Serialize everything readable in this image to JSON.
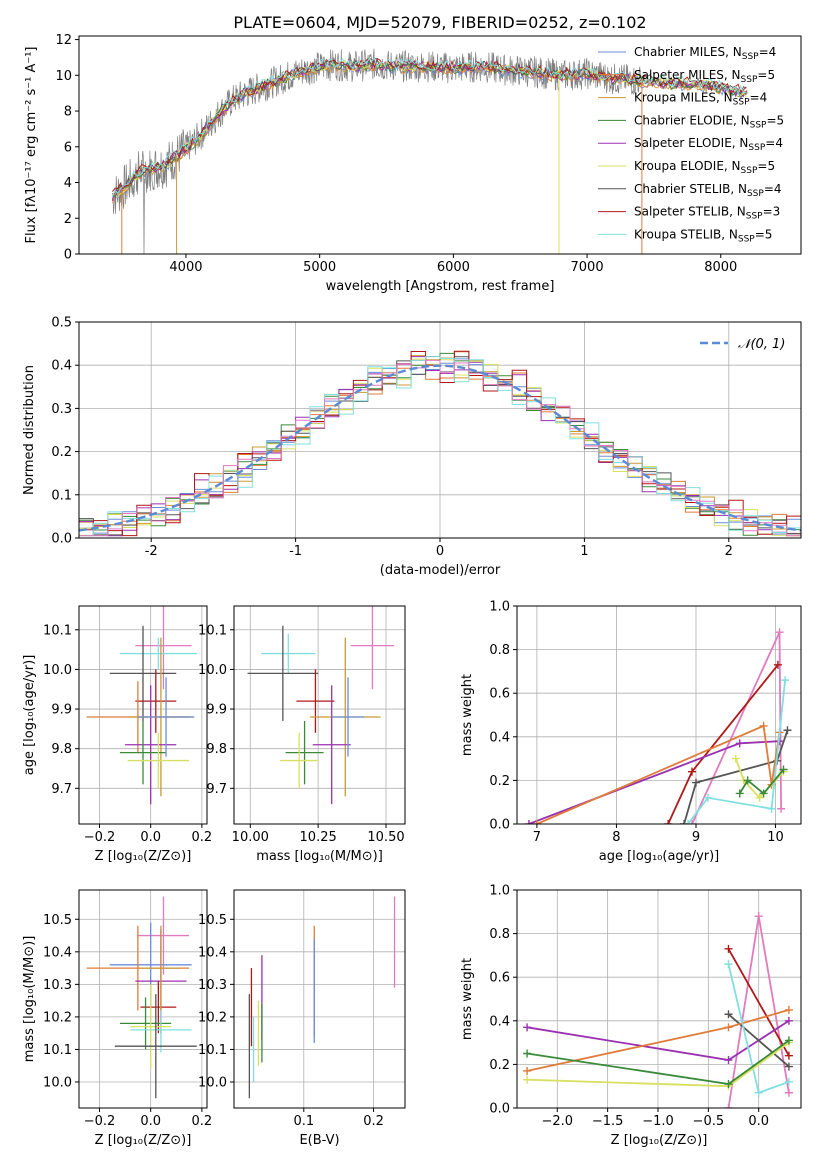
{
  "figure": {
    "title": "PLATE=0604, MJD=52079, FIBERID=0252, z=0.102"
  },
  "series_colors": {
    "Chabrier MILES": "#6b8dd6",
    "Salpeter MILES": "#e07b39",
    "Kroupa MILES": "#cc9933",
    "Chabrier ELODIE": "#3a8a3a",
    "Salpeter ELODIE": "#9a30b0",
    "Kroupa ELODIE": "#d8e060",
    "Chabrier STELIB": "#555555",
    "Salpeter STELIB": "#b01818",
    "Kroupa STELIB": "#80dfe0",
    "extra_pink": "#e07bc0"
  },
  "chart_data": [
    {
      "id": "spectrum",
      "type": "line",
      "title": "PLATE=0604, MJD=52079, FIBERID=0252, z=0.102",
      "xlabel": "wavelength [Angstrom, rest frame]",
      "ylabel": "Flux [fλ10⁻¹⁷ erg cm⁻² s⁻¹ A⁻¹]",
      "xlim": [
        3200,
        8600
      ],
      "ylim": [
        0,
        12.2
      ],
      "xticks": [
        4000,
        5000,
        6000,
        7000,
        8000
      ],
      "yticks": [
        0,
        2,
        4,
        6,
        8,
        10,
        12
      ],
      "grid": false,
      "legend_position": "right",
      "legend": [
        {
          "main": "Chabrier MILES, N",
          "sub": "SSP",
          "tail": "=4",
          "color": "#6b8dd6"
        },
        {
          "main": "Salpeter MILES, N",
          "sub": "SSP",
          "tail": "=5",
          "color": "#e07b39"
        },
        {
          "main": "Kroupa MILES, N",
          "sub": "SSP",
          "tail": "=4",
          "color": "#cc9933"
        },
        {
          "main": "Chabrier ELODIE, N",
          "sub": "SSP",
          "tail": "=5",
          "color": "#3a8a3a"
        },
        {
          "main": "Salpeter ELODIE, N",
          "sub": "SSP",
          "tail": "=4",
          "color": "#9a30b0"
        },
        {
          "main": "Kroupa ELODIE, N",
          "sub": "SSP",
          "tail": "=5",
          "color": "#d8e060"
        },
        {
          "main": "Chabrier STELIB, N",
          "sub": "SSP",
          "tail": "=4",
          "color": "#555555"
        },
        {
          "main": "Salpeter STELIB, N",
          "sub": "SSP",
          "tail": "=3",
          "color": "#b01818"
        },
        {
          "main": "Kroupa STELIB, N",
          "sub": "SSP",
          "tail": "=5",
          "color": "#80dfe0"
        }
      ],
      "data_trace": {
        "color": "#7f7f7f",
        "x": [
          3450,
          3550,
          3650,
          3750,
          3850,
          3950,
          4050,
          4150,
          4250,
          4350,
          4450,
          4550,
          4650,
          4750,
          4850,
          4950,
          5100,
          5250,
          5400,
          5600,
          5800,
          6000,
          6200,
          6400,
          6600,
          6800,
          7000,
          7200,
          7400,
          7600,
          7800,
          8000,
          8200
        ],
        "y": [
          3.2,
          3.8,
          4.6,
          4.8,
          5.0,
          5.6,
          6.2,
          7.0,
          7.9,
          8.6,
          9.0,
          9.3,
          9.6,
          9.9,
          10.2,
          10.4,
          10.6,
          10.5,
          10.6,
          10.5,
          10.5,
          10.4,
          10.5,
          10.3,
          10.2,
          10.0,
          10.1,
          9.8,
          9.7,
          9.6,
          9.5,
          9.3,
          9.0
        ]
      }
    },
    {
      "id": "residual-histogram",
      "type": "step",
      "xlabel": "(data-model)/error",
      "ylabel": "Normed distribution",
      "xlim": [
        -2.5,
        2.5
      ],
      "ylim": [
        0,
        0.5
      ],
      "xticks": [
        -2,
        -1,
        0,
        1,
        2
      ],
      "yticks": [
        0.0,
        0.1,
        0.2,
        0.3,
        0.4,
        0.5
      ],
      "grid": true,
      "legend_position": "upper right",
      "legend": [
        {
          "label": "𝒩(0, 1)",
          "color": "#5b8bd6",
          "style": "dashed"
        }
      ],
      "normal_curve": {
        "mean": 0,
        "sigma": 1
      },
      "bin_width": 0.1,
      "reference_counts": [
        0.035,
        0.032,
        0.033,
        0.038,
        0.045,
        0.055,
        0.07,
        0.08,
        0.1,
        0.12,
        0.14,
        0.15,
        0.17,
        0.2,
        0.22,
        0.23,
        0.25,
        0.27,
        0.29,
        0.31,
        0.33,
        0.35,
        0.36,
        0.37,
        0.38,
        0.39,
        0.4,
        0.41,
        0.42,
        0.43,
        0.44,
        0.44,
        0.44,
        0.43,
        0.42,
        0.4,
        0.38,
        0.36,
        0.33,
        0.3,
        0.27,
        0.25,
        0.22,
        0.2,
        0.18,
        0.17,
        0.16,
        0.15,
        0.14,
        0.13
      ],
      "series_offsets": [
        0,
        0.015,
        -0.012,
        0.02,
        -0.018,
        0.01,
        -0.008,
        0.025,
        -0.02,
        0.005
      ]
    },
    {
      "id": "age-vs-z",
      "type": "errorbar",
      "xlabel": "Z [log₁₀(Z/Z⊙)]",
      "ylabel": "age  [log₁₀(age/yr)]",
      "xlim": [
        -0.28,
        0.22
      ],
      "ylim": [
        9.61,
        10.16
      ],
      "xticks": [
        -0.2,
        0.0,
        0.2
      ],
      "xticklabels": [
        "−0.2",
        "0.0",
        "0.2"
      ],
      "yticks": [
        9.7,
        9.8,
        9.9,
        10.0,
        10.1
      ],
      "grid": true,
      "points": [
        {
          "x": 0.05,
          "xerr": 0.11,
          "y": 10.06,
          "yerr": 0.11,
          "color": "#e07bc0"
        },
        {
          "x": 0.03,
          "xerr": 0.15,
          "y": 10.04,
          "yerr": 0.04,
          "color": "#80dfe0"
        },
        {
          "x": -0.03,
          "xerr": 0.13,
          "y": 9.99,
          "yerr": 0.12,
          "color": "#555555"
        },
        {
          "x": 0.02,
          "xerr": 0.08,
          "y": 9.92,
          "yerr": 0.08,
          "color": "#b01818"
        },
        {
          "x": -0.05,
          "xerr": 0.2,
          "y": 9.88,
          "yerr": 0.09,
          "color": "#e07b39"
        },
        {
          "x": 0.04,
          "xerr": 0.13,
          "y": 9.88,
          "yerr": 0.2,
          "color": "#cc9933"
        },
        {
          "x": 0.0,
          "xerr": 0.1,
          "y": 9.81,
          "yerr": 0.15,
          "color": "#9a30b0"
        },
        {
          "x": -0.03,
          "xerr": 0.09,
          "y": 9.79,
          "yerr": 0.08,
          "color": "#3a8a3a"
        },
        {
          "x": 0.03,
          "xerr": 0.12,
          "y": 9.77,
          "yerr": 0.07,
          "color": "#d8e060"
        },
        {
          "x": 0.06,
          "xerr": 0.11,
          "y": 9.88,
          "yerr": 0.1,
          "color": "#6b8dd6"
        }
      ]
    },
    {
      "id": "age-vs-mass",
      "type": "errorbar",
      "xlabel": "mass [log₁₀(M/M⊙)]",
      "ylabel": "",
      "xlim": [
        9.94,
        10.57
      ],
      "ylim": [
        9.61,
        10.16
      ],
      "xticks": [
        10.0,
        10.25,
        10.5
      ],
      "xticklabels": [
        "10.00",
        "10.25",
        "10.50"
      ],
      "yticks": [
        9.7,
        9.8,
        9.9,
        10.0,
        10.1
      ],
      "grid": true,
      "points": [
        {
          "x": 10.45,
          "xerr": 0.08,
          "y": 10.06,
          "yerr": 0.11,
          "color": "#e07bc0"
        },
        {
          "x": 10.14,
          "xerr": 0.1,
          "y": 10.04,
          "yerr": 0.05,
          "color": "#80dfe0"
        },
        {
          "x": 10.12,
          "xerr": 0.13,
          "y": 9.99,
          "yerr": 0.12,
          "color": "#555555"
        },
        {
          "x": 10.24,
          "xerr": 0.07,
          "y": 9.92,
          "yerr": 0.08,
          "color": "#b01818"
        },
        {
          "x": 10.35,
          "xerr": 0.13,
          "y": 9.88,
          "yerr": 0.2,
          "color": "#cc9933"
        },
        {
          "x": 10.3,
          "xerr": 0.07,
          "y": 9.81,
          "yerr": 0.15,
          "color": "#9a30b0"
        },
        {
          "x": 10.2,
          "xerr": 0.07,
          "y": 9.79,
          "yerr": 0.08,
          "color": "#3a8a3a"
        },
        {
          "x": 10.18,
          "xerr": 0.07,
          "y": 9.77,
          "yerr": 0.07,
          "color": "#d8e060"
        },
        {
          "x": 10.36,
          "xerr": 0.06,
          "y": 9.88,
          "yerr": 0.1,
          "color": "#6b8dd6"
        }
      ]
    },
    {
      "id": "weight-vs-age",
      "type": "line",
      "xlabel": "age  [log₁₀(age/yr)]",
      "ylabel": "mass weight",
      "xlim": [
        6.75,
        10.32
      ],
      "ylim": [
        0,
        1.0
      ],
      "xticks": [
        7,
        8,
        9,
        10
      ],
      "yticks": [
        0.0,
        0.2,
        0.4,
        0.6,
        0.8,
        1.0
      ],
      "grid": true,
      "series": [
        {
          "color": "#e07bc0",
          "x": [
            8.95,
            10.05,
            10.07
          ],
          "y": [
            0.0,
            0.88,
            0.07
          ]
        },
        {
          "color": "#b01818",
          "x": [
            8.65,
            8.95,
            10.03
          ],
          "y": [
            0.0,
            0.24,
            0.73
          ]
        },
        {
          "color": "#9a30b0",
          "x": [
            6.9,
            9.55,
            10.05
          ],
          "y": [
            0.0,
            0.37,
            0.38
          ]
        },
        {
          "color": "#555555",
          "x": [
            8.85,
            9.0,
            10.02,
            10.15
          ],
          "y": [
            0.0,
            0.19,
            0.29,
            0.43
          ]
        },
        {
          "color": "#e07b39",
          "x": [
            7.0,
            9.85,
            9.95,
            10.05
          ],
          "y": [
            0.0,
            0.45,
            0.18,
            0.42
          ]
        },
        {
          "color": "#80dfe0",
          "x": [
            8.9,
            9.15,
            9.95,
            10.12
          ],
          "y": [
            0.0,
            0.12,
            0.07,
            0.66
          ]
        },
        {
          "color": "#d8e060",
          "x": [
            9.5,
            9.6,
            9.8,
            10.1
          ],
          "y": [
            0.3,
            0.2,
            0.12,
            0.24
          ]
        },
        {
          "color": "#3a8a3a",
          "x": [
            9.55,
            9.65,
            9.85,
            10.1
          ],
          "y": [
            0.14,
            0.2,
            0.14,
            0.25
          ]
        }
      ]
    },
    {
      "id": "mass-vs-z",
      "type": "errorbar",
      "xlabel": "Z [log₁₀(Z/Z⊙)]",
      "ylabel": "mass [log₁₀(M/M⊙)]",
      "xlim": [
        -0.28,
        0.22
      ],
      "ylim": [
        9.92,
        10.59
      ],
      "xticks": [
        -0.2,
        0.0,
        0.2
      ],
      "xticklabels": [
        "−0.2",
        "0.0",
        "0.2"
      ],
      "yticks": [
        10.0,
        10.1,
        10.2,
        10.3,
        10.4,
        10.5
      ],
      "grid": true,
      "points": [
        {
          "x": 0.05,
          "xerr": 0.1,
          "y": 10.45,
          "yerr": 0.12,
          "color": "#e07bc0"
        },
        {
          "x": 0.0,
          "xerr": 0.16,
          "y": 10.36,
          "yerr": 0.13,
          "color": "#6b8dd6"
        },
        {
          "x": -0.05,
          "xerr": 0.2,
          "y": 10.35,
          "yerr": 0.13,
          "color": "#e07b39"
        },
        {
          "x": 0.04,
          "xerr": 0.1,
          "y": 10.31,
          "yerr": 0.16,
          "color": "#9a30b0"
        },
        {
          "x": 0.03,
          "xerr": 0.07,
          "y": 10.23,
          "yerr": 0.08,
          "color": "#b01818"
        },
        {
          "x": -0.02,
          "xerr": 0.1,
          "y": 10.18,
          "yerr": 0.08,
          "color": "#3a8a3a"
        },
        {
          "x": 0.04,
          "xerr": 0.12,
          "y": 10.16,
          "yerr": 0.07,
          "color": "#80dfe0"
        },
        {
          "x": 0.0,
          "xerr": 0.08,
          "y": 10.17,
          "yerr": 0.13,
          "color": "#d8e060"
        },
        {
          "x": 0.02,
          "xerr": 0.16,
          "y": 10.11,
          "yerr": 0.16,
          "color": "#555555"
        },
        {
          "x": 0.04,
          "xerr": 0.08,
          "y": 10.35,
          "yerr": 0.13,
          "color": "#cc9933"
        }
      ]
    },
    {
      "id": "mass-vs-ebv",
      "type": "errorbar",
      "xlabel": "E(B-V)",
      "ylabel": "",
      "xlim": [
        0.0,
        0.245
      ],
      "ylim": [
        9.92,
        10.59
      ],
      "xticks": [
        0.1,
        0.2
      ],
      "xticklabels": [
        "0.1",
        "0.2"
      ],
      "yticks": [
        10.0,
        10.1,
        10.2,
        10.3,
        10.4,
        10.5
      ],
      "grid": true,
      "points": [
        {
          "x": 0.23,
          "xerr": 0.0,
          "y": 10.43,
          "yerr": 0.14,
          "color": "#e07bc0"
        },
        {
          "x": 0.115,
          "xerr": 0.0,
          "y": 10.31,
          "yerr": 0.17,
          "color": "#e07b39"
        },
        {
          "x": 0.115,
          "xerr": 0.0,
          "y": 10.28,
          "yerr": 0.16,
          "color": "#6b8dd6"
        },
        {
          "x": 0.04,
          "xerr": 0.0,
          "y": 10.26,
          "yerr": 0.13,
          "color": "#9a30b0"
        },
        {
          "x": 0.025,
          "xerr": 0.0,
          "y": 10.23,
          "yerr": 0.12,
          "color": "#b01818"
        },
        {
          "x": 0.022,
          "xerr": 0.0,
          "y": 10.11,
          "yerr": 0.16,
          "color": "#555555"
        },
        {
          "x": 0.035,
          "xerr": 0.0,
          "y": 10.15,
          "yerr": 0.1,
          "color": "#d8e060"
        },
        {
          "x": 0.028,
          "xerr": 0.0,
          "y": 10.1,
          "yerr": 0.1,
          "color": "#80dfe0"
        },
        {
          "x": 0.04,
          "xerr": 0.0,
          "y": 10.15,
          "yerr": 0.09,
          "color": "#3a8a3a"
        }
      ]
    },
    {
      "id": "weight-vs-z",
      "type": "line",
      "xlabel": "Z [log₁₀(Z/Z⊙)]",
      "ylabel": "mass weight",
      "xlim": [
        -2.4,
        0.42
      ],
      "ylim": [
        0,
        1.0
      ],
      "xticks": [
        -2.0,
        -1.5,
        -1.0,
        -0.5,
        0.0
      ],
      "xticklabels": [
        "−2.0",
        "−1.5",
        "−1.0",
        "−0.5",
        "0.0"
      ],
      "yticks": [
        0.0,
        0.2,
        0.4,
        0.6,
        0.8,
        1.0
      ],
      "grid": true,
      "series": [
        {
          "color": "#e07bc0",
          "x": [
            -0.3,
            0.0,
            0.3
          ],
          "y": [
            0.0,
            0.88,
            0.07
          ]
        },
        {
          "color": "#b01818",
          "x": [
            -0.3,
            0.3
          ],
          "y": [
            0.73,
            0.24
          ]
        },
        {
          "color": "#9a30b0",
          "x": [
            -2.3,
            -0.3,
            0.3
          ],
          "y": [
            0.37,
            0.22,
            0.4
          ]
        },
        {
          "color": "#555555",
          "x": [
            -0.3,
            0.3
          ],
          "y": [
            0.43,
            0.19
          ]
        },
        {
          "color": "#e07b39",
          "x": [
            -2.3,
            -0.3,
            0.3
          ],
          "y": [
            0.17,
            0.37,
            0.45
          ]
        },
        {
          "color": "#80dfe0",
          "x": [
            -0.3,
            0.0,
            0.3
          ],
          "y": [
            0.66,
            0.07,
            0.12
          ]
        },
        {
          "color": "#d8e060",
          "x": [
            -2.3,
            -0.3,
            0.3
          ],
          "y": [
            0.13,
            0.1,
            0.3
          ]
        },
        {
          "color": "#3a8a3a",
          "x": [
            -2.3,
            -0.3,
            0.3
          ],
          "y": [
            0.25,
            0.11,
            0.31
          ]
        }
      ]
    }
  ]
}
